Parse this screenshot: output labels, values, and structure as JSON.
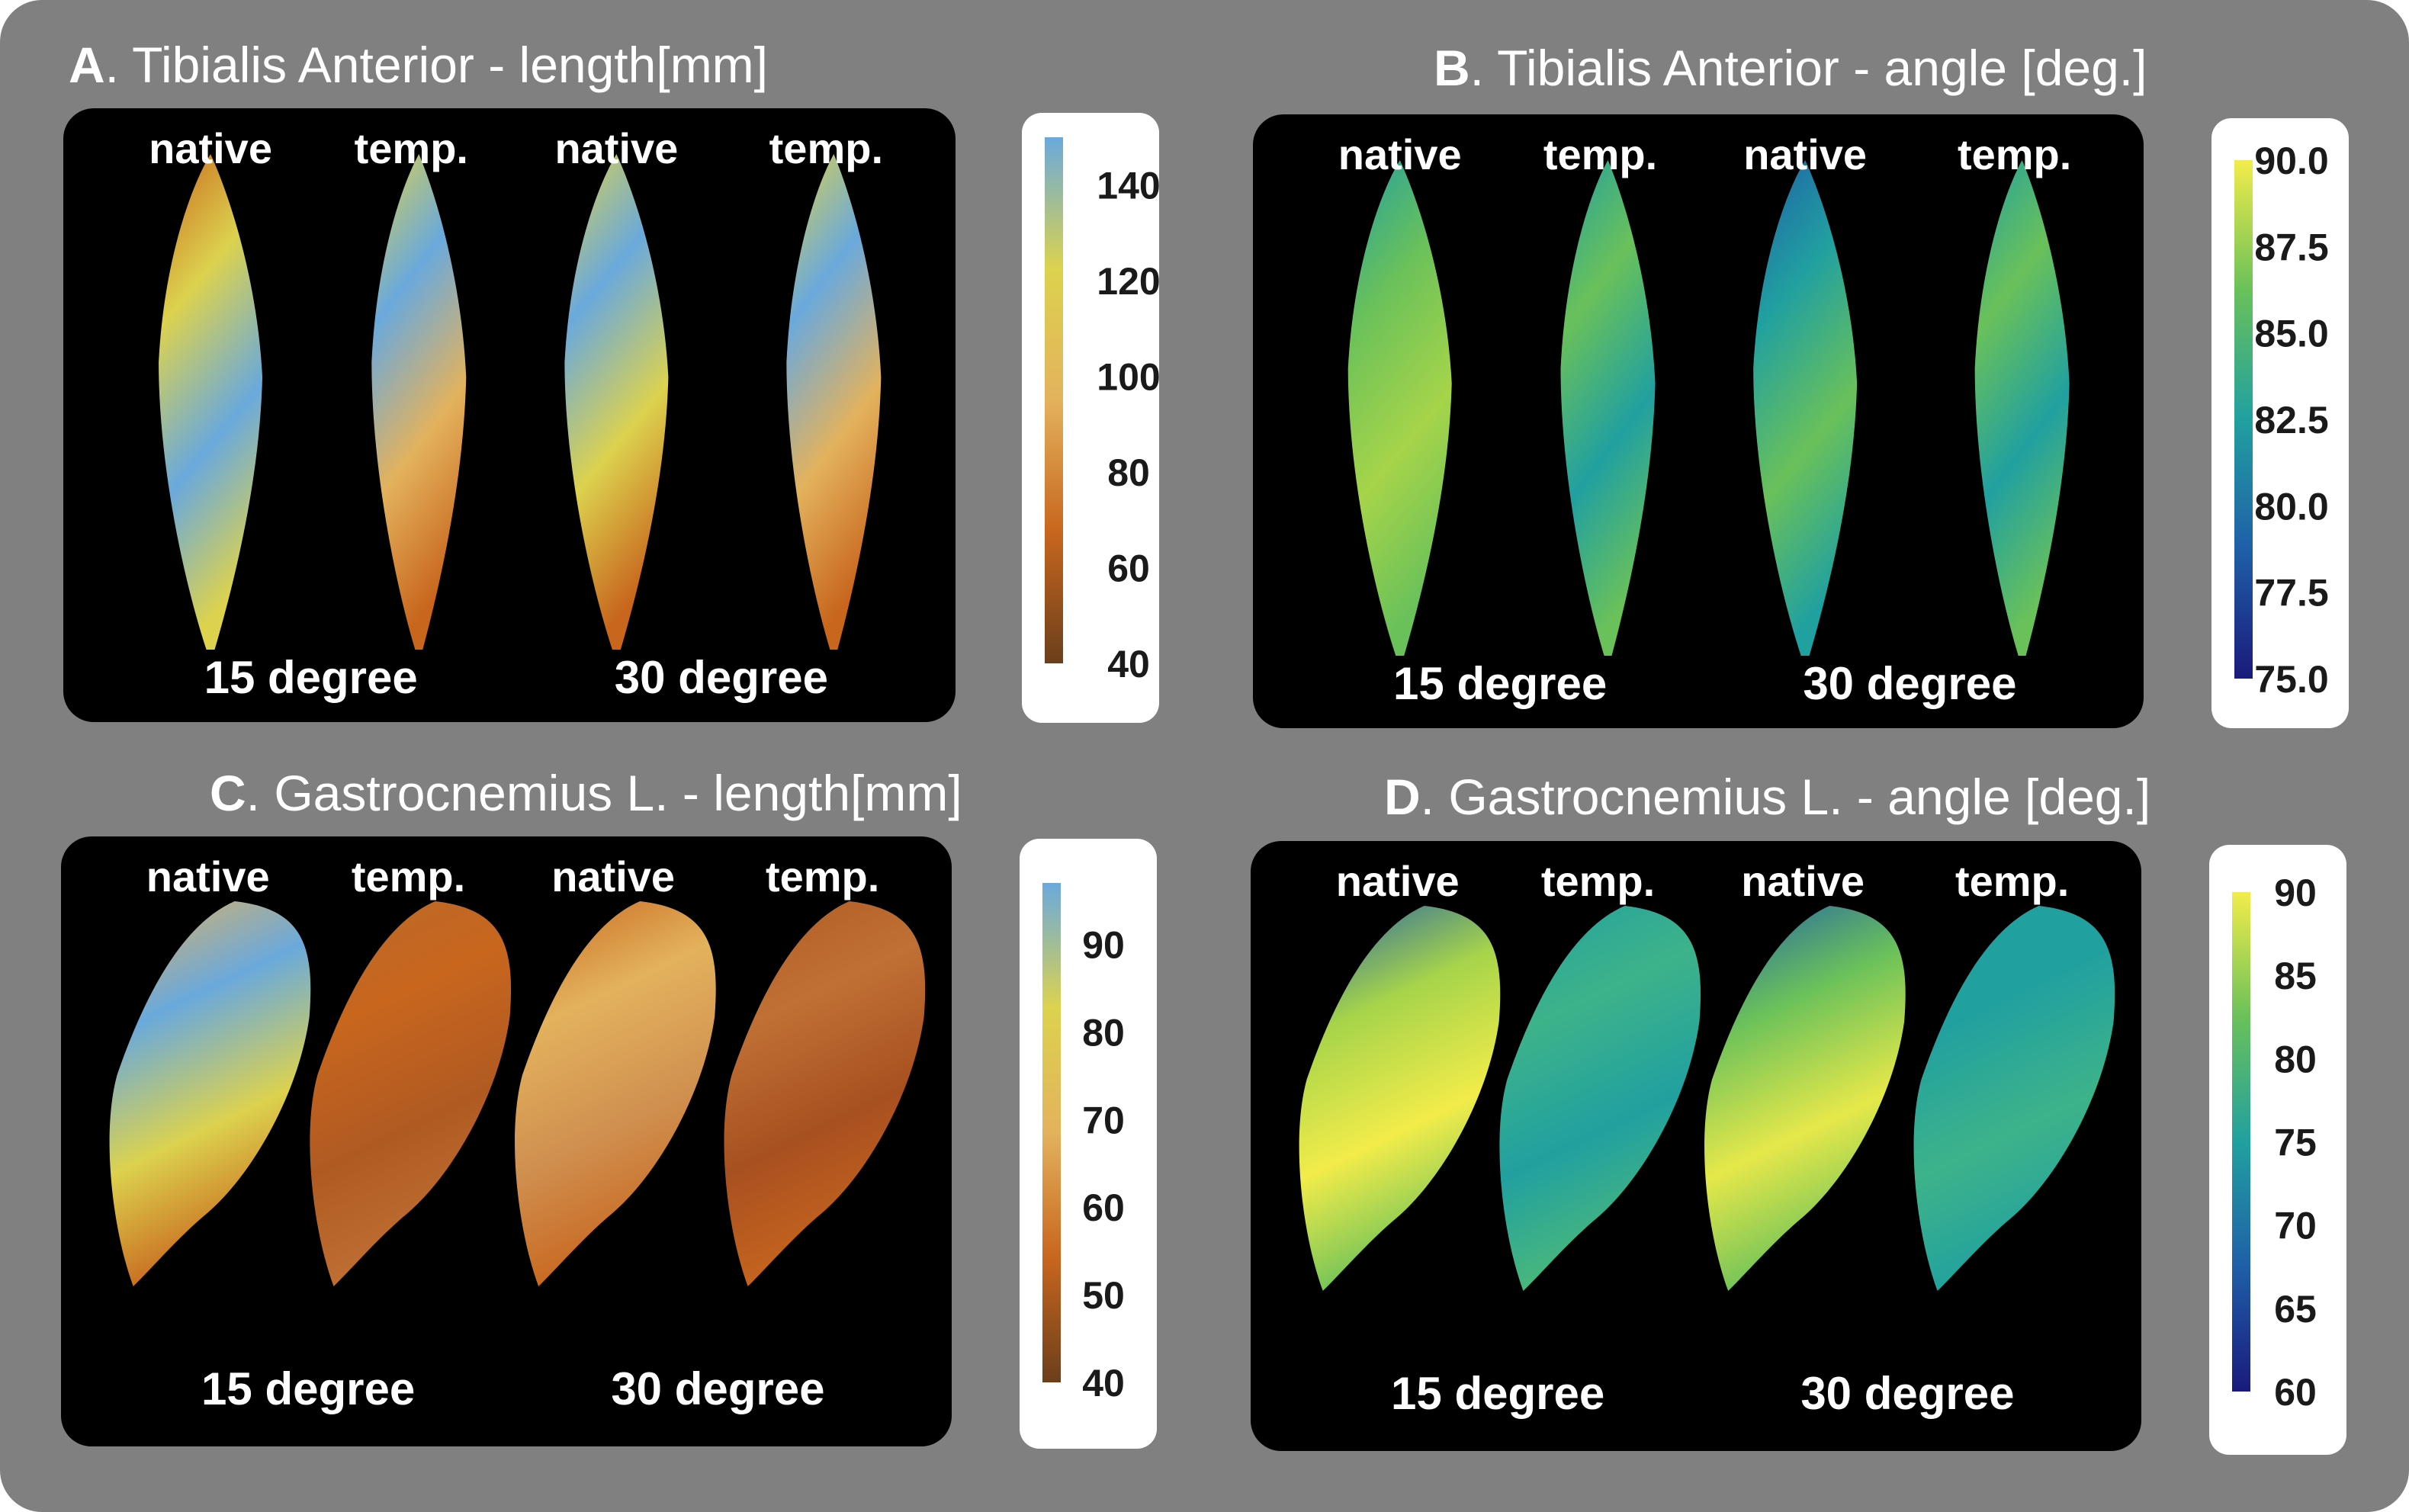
{
  "panels": [
    {
      "id": "A",
      "letter": "A",
      "title_rest": ". Tibialis Anterior - length[mm]",
      "muscle": "tibialis",
      "columns": [
        "native",
        "temp.",
        "native",
        "temp."
      ],
      "angles": [
        "15 degree",
        "30 degree"
      ],
      "colorbar": {
        "colormap": "brown-yellow-blue",
        "stops": [
          "#6b3f1c",
          "#c8661e",
          "#e3b25d",
          "#dcd24e",
          "#6aa9dc"
        ],
        "range": [
          40,
          150
        ],
        "ticks": [
          "140",
          "120",
          "100",
          "80",
          "60",
          "40"
        ],
        "tick_values": [
          140,
          120,
          100,
          80,
          60,
          40
        ]
      }
    },
    {
      "id": "B",
      "letter": "B",
      "title_rest": ". Tibialis Anterior - angle [deg.]",
      "muscle": "tibialis",
      "columns": [
        "native",
        "temp.",
        "native",
        "temp."
      ],
      "angles": [
        "15 degree",
        "30 degree"
      ],
      "colorbar": {
        "colormap": "parula",
        "stops": [
          "#1a1a7a",
          "#1f5fa8",
          "#21a0a0",
          "#6ac15a",
          "#f2ec4a"
        ],
        "range": [
          75,
          90
        ],
        "ticks": [
          "90.0",
          "87.5",
          "85.0",
          "82.5",
          "80.0",
          "77.5",
          "75.0"
        ],
        "tick_values": [
          90,
          87.5,
          85,
          82.5,
          80,
          77.5,
          75
        ]
      }
    },
    {
      "id": "C",
      "letter": "C",
      "title_rest": ". Gastrocnemius L. - length[mm]",
      "muscle": "gastrocnemius",
      "columns": [
        "native",
        "temp.",
        "native",
        "temp."
      ],
      "angles": [
        "15 degree",
        "30 degree"
      ],
      "colorbar": {
        "colormap": "brown-yellow-blue",
        "stops": [
          "#6b3f1c",
          "#c8661e",
          "#e3b25d",
          "#dcd24e",
          "#6aa9dc"
        ],
        "range": [
          40,
          97
        ],
        "ticks": [
          "90",
          "80",
          "70",
          "60",
          "50",
          "40"
        ],
        "tick_values": [
          90,
          80,
          70,
          60,
          50,
          40
        ]
      }
    },
    {
      "id": "D",
      "letter": "D",
      "title_rest": ". Gastrocnemius L.  - angle [deg.]",
      "muscle": "gastrocnemius",
      "columns": [
        "native",
        "temp.",
        "native",
        "temp."
      ],
      "angles": [
        "15 degree",
        "30 degree"
      ],
      "colorbar": {
        "colormap": "parula",
        "stops": [
          "#1a1a7a",
          "#1f5fa8",
          "#21a0a0",
          "#6ac15a",
          "#f2ec4a"
        ],
        "range": [
          60,
          90
        ],
        "ticks": [
          "90",
          "85",
          "80",
          "75",
          "70",
          "65",
          "60"
        ],
        "tick_values": [
          90,
          85,
          80,
          75,
          70,
          65,
          60
        ]
      }
    }
  ],
  "colors": {
    "figure_background": "#808080",
    "image_background": "#000000",
    "colorbar_card": "#ffffff"
  }
}
